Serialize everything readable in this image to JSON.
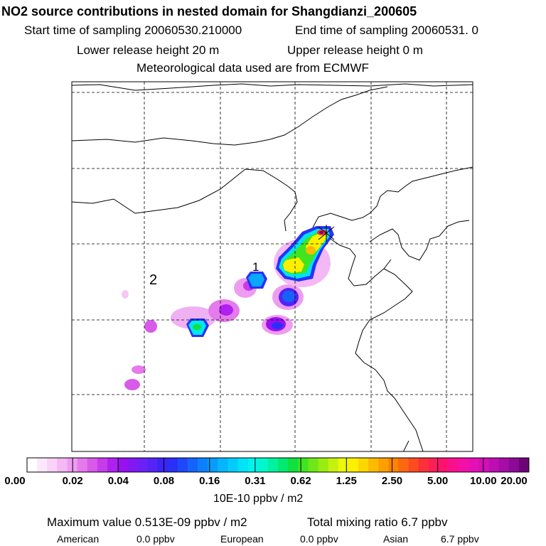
{
  "header": {
    "title": "NO2 source contributions in nested domain for Shangdianzi_200605",
    "start_time": "Start time of sampling 20060530.210000",
    "end_time": "End time of sampling 20060531.      0",
    "lower_height": "Lower release height   20 m",
    "upper_height": "Upper release height    0 m",
    "met_data": "Meteorological data used are from ECMWF"
  },
  "chart_data": {
    "type": "heatmap",
    "title": "NO2 source contributions in nested domain for Shangdianzi_200605",
    "map_labels": [
      "1",
      "2"
    ],
    "colorbar": {
      "tick_labels": [
        "0.00",
        "0.02",
        "0.04",
        "0.08",
        "0.16",
        "0.31",
        "0.62",
        "1.25",
        "2.50",
        "5.00",
        "10.00",
        "20.00"
      ],
      "units": "10E-10 ppbv / m2",
      "colors": [
        "#ffffff",
        "#fce8fc",
        "#f8d2f8",
        "#f4b8f4",
        "#ee9cf0",
        "#e47aec",
        "#d85ae8",
        "#c63cea",
        "#b020ee",
        "#9a10f0",
        "#8418f2",
        "#6c20f4",
        "#5424f6",
        "#3a24f6",
        "#2a30f8",
        "#1e48fa",
        "#1464fc",
        "#0c80fc",
        "#089cfc",
        "#06b6fc",
        "#04ccfa",
        "#00e2f8",
        "#00f4ee",
        "#00f8cc",
        "#00f2a0",
        "#00ea70",
        "#10e040",
        "#40e420",
        "#6ce818",
        "#98ec10",
        "#c4f20c",
        "#ecf808",
        "#fcf000",
        "#fcd600",
        "#fcba00",
        "#fca000",
        "#fc8400",
        "#fc6810",
        "#fc4c20",
        "#fc3038",
        "#fc1e56",
        "#fc1270",
        "#fa108e",
        "#f210a8",
        "#e410b4",
        "#d210b6",
        "#be0eb2",
        "#a60ca8",
        "#8c0a96",
        "#6c0478"
      ]
    },
    "plumes": [
      {
        "name": "plume-main-north",
        "level": 5.0,
        "color": "#fc2838"
      },
      {
        "name": "plume-main-yellow",
        "level": 1.25,
        "color": "#fce000"
      },
      {
        "name": "plume-green-band",
        "level": 0.62,
        "color": "#40e420"
      },
      {
        "name": "plume-cyan-1",
        "level": 0.16,
        "color": "#00d6f8"
      },
      {
        "name": "plume-blue-mid",
        "level": 0.08,
        "color": "#1464fc"
      },
      {
        "name": "plume-purple-south",
        "level": 0.04,
        "color": "#8418f2"
      },
      {
        "name": "plume-cyan-west",
        "level": 0.16,
        "color": "#00e8e8"
      },
      {
        "name": "plume-light-magenta",
        "level": 0.02,
        "color": "#e47aec"
      }
    ]
  },
  "footer": {
    "max_value": "Maximum value  0.513E-09 ppbv / m2",
    "total_mixing": "Total mixing ratio       6.7 ppbv",
    "american_label": "American",
    "american_value": "0.0 ppbv",
    "european_label": "European",
    "european_value": "0.0 ppbv",
    "asian_label": "Asian",
    "asian_value": "6.7 ppbv"
  }
}
